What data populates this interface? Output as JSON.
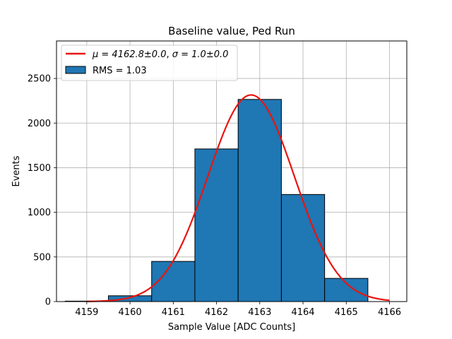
{
  "chart_data": {
    "type": "bar",
    "title": "Baseline value, Ped Run",
    "xlabel": "Sample Value [ADC Counts]",
    "ylabel": "Events",
    "xlim": [
      4158.3,
      4166.4
    ],
    "ylim": [
      0,
      2920
    ],
    "xticks": [
      4159,
      4160,
      4161,
      4162,
      4163,
      4164,
      4165,
      4166
    ],
    "yticks": [
      0,
      500,
      1000,
      1500,
      2000,
      2500
    ],
    "grid": true,
    "legend_position": "top-left",
    "histogram": {
      "name": "RMS = 1.03",
      "bin_width": 1,
      "bin_centers": [
        4159,
        4160,
        4161,
        4162,
        4163,
        4164,
        4165
      ],
      "values": [
        5,
        65,
        450,
        1710,
        2265,
        1200,
        260
      ],
      "color": "#1f77b4",
      "edge_color": "#000000"
    },
    "fit": {
      "name": "μ = 4162.8±0.0, σ = 1.0±0.0",
      "mu_label": "μ = 4162.8±0.0",
      "sigma_label": "σ = 1.0±0.0",
      "mu": 4162.8,
      "sigma": 1.0,
      "amplitude": 2315,
      "x_range": [
        4159,
        4166
      ],
      "color": "#e8150f"
    }
  }
}
